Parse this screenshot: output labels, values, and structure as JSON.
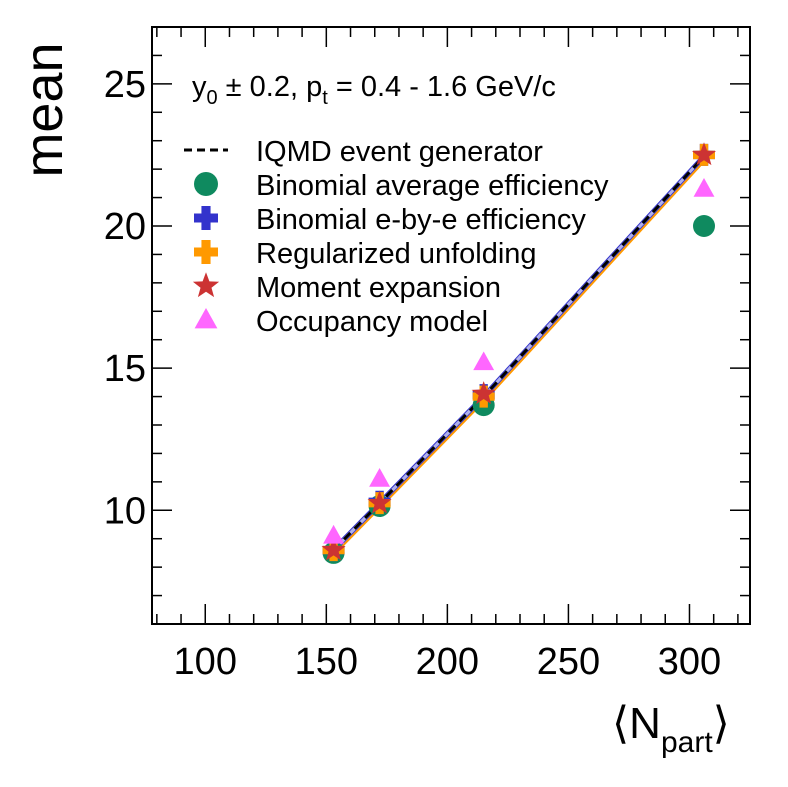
{
  "chart_data": {
    "type": "scatter",
    "title": "",
    "annotation": {
      "y": "y",
      "y_sub": "0",
      "mid": " ± 0.2,  p",
      "p_sub": "t",
      "tail": " = 0.4 - 1.6 GeV/c"
    },
    "xlabel": {
      "main": "N",
      "sub": "part"
    },
    "ylabel": "mean",
    "xlim": [
      78,
      325
    ],
    "ylim": [
      6.0,
      27.0
    ],
    "x_ticks": [
      100,
      150,
      200,
      250,
      300
    ],
    "y_ticks": [
      10,
      15,
      20,
      25
    ],
    "grid": false,
    "legend_position": "top-left",
    "x": [
      153,
      172,
      215,
      306
    ],
    "series": [
      {
        "name": "IQMD event generator",
        "marker": "dashed-line",
        "color": "#000000",
        "values": [
          8.6,
          10.25,
          14.0,
          22.45
        ]
      },
      {
        "name": "Binomial average efficiency",
        "marker": "circle",
        "color": "#0f8a5f",
        "values": [
          8.5,
          10.15,
          13.7,
          20.0
        ]
      },
      {
        "name": "Binomial e-by-e efficiency",
        "marker": "cross",
        "color": "#3333cc",
        "values": [
          8.6,
          10.3,
          14.05,
          22.5
        ]
      },
      {
        "name": "Regularized unfolding",
        "marker": "cross",
        "color": "#ff9900",
        "values": [
          8.6,
          10.25,
          14.0,
          22.5
        ]
      },
      {
        "name": "Moment expansion",
        "marker": "star",
        "color": "#cc3333",
        "values": [
          8.6,
          10.25,
          14.1,
          22.5
        ]
      },
      {
        "name": "Occupancy model",
        "marker": "triangle",
        "color": "#ff66ff",
        "values": [
          9.1,
          11.1,
          15.2,
          21.3
        ]
      }
    ]
  }
}
